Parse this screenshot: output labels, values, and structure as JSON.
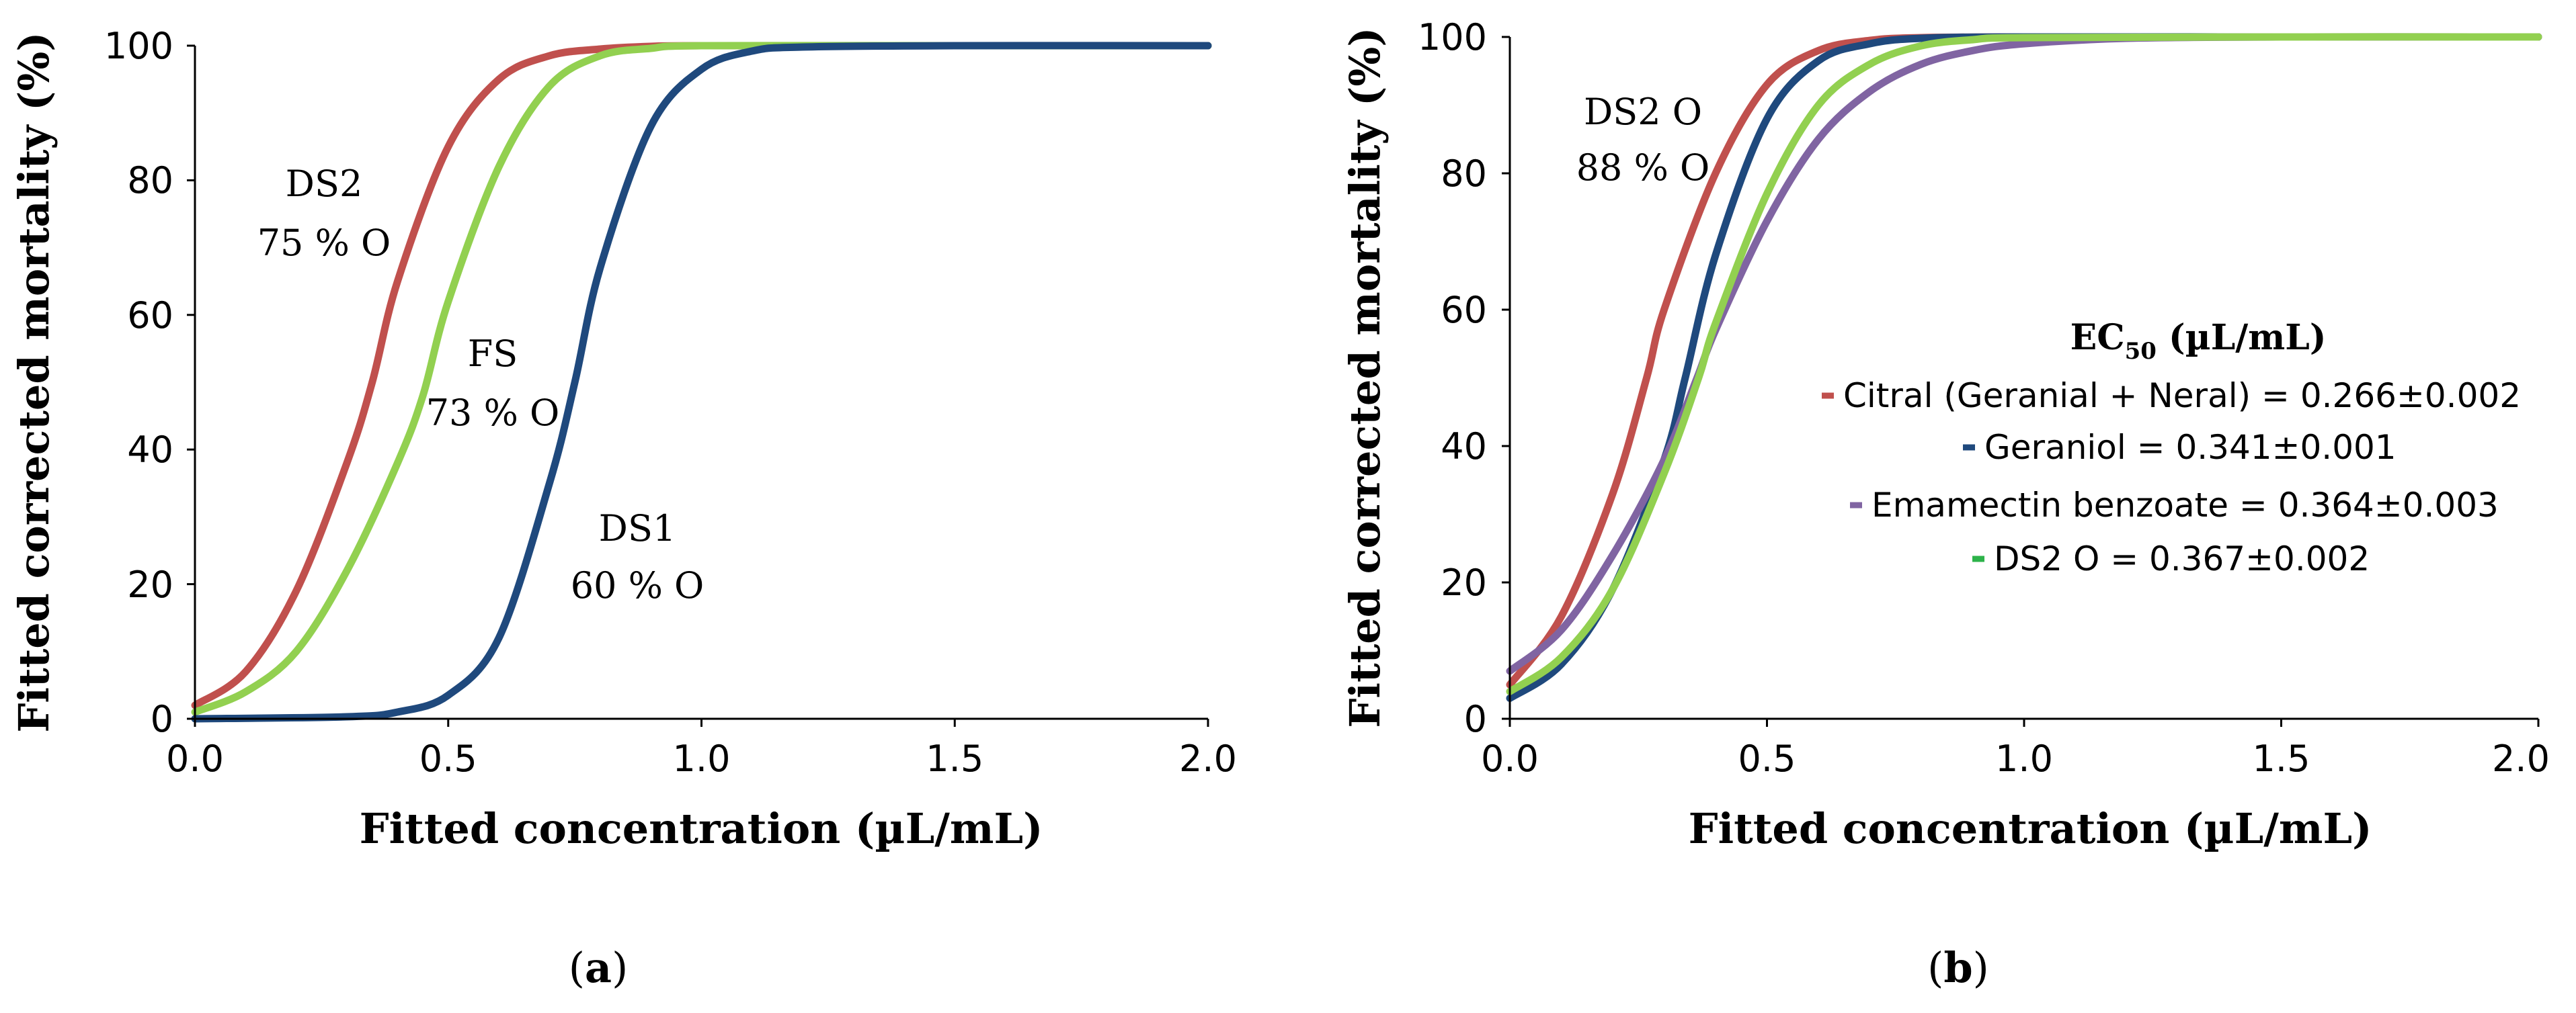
{
  "chart_data": [
    {
      "type": "line",
      "panel_label": [
        "(",
        "a",
        ")"
      ],
      "xlabel": "Fitted concentration (µL/mL)",
      "ylabel": "Fitted corrected mortality (%)",
      "xlim": [
        0,
        2
      ],
      "ylim": [
        0,
        100
      ],
      "xticks": [
        "0.0",
        "0.5",
        "1.0",
        "1.5",
        "2.0"
      ],
      "yticks": [
        "0",
        "20",
        "40",
        "60",
        "80",
        "100"
      ],
      "series": [
        {
          "name": "DS2",
          "color": "#c0504d",
          "x": [
            0,
            0.1,
            0.2,
            0.3,
            0.35,
            0.4,
            0.5,
            0.6,
            0.7,
            0.8,
            0.9,
            1.0,
            1.5,
            2.0
          ],
          "values": [
            2,
            7,
            19,
            38,
            50,
            65,
            85,
            95,
            98.5,
            99.5,
            99.9,
            100,
            100,
            100
          ]
        },
        {
          "name": "FS",
          "color": "#92d050",
          "x": [
            0,
            0.1,
            0.2,
            0.3,
            0.4,
            0.45,
            0.5,
            0.6,
            0.7,
            0.8,
            0.9,
            1.0,
            1.5,
            2.0
          ],
          "values": [
            1,
            4,
            10,
            22,
            38,
            48,
            62,
            82,
            94,
            98.5,
            99.6,
            100,
            100,
            100
          ]
        },
        {
          "name": "DS1",
          "color": "#1f497d",
          "x": [
            0,
            0.3,
            0.4,
            0.5,
            0.6,
            0.7,
            0.75,
            0.8,
            0.9,
            1.0,
            1.1,
            1.2,
            1.5,
            2.0
          ],
          "values": [
            0,
            0.3,
            1,
            3.5,
            12,
            35,
            50,
            67,
            88,
            96.5,
            99.2,
            99.8,
            100,
            100
          ]
        }
      ],
      "annotations": [
        {
          "lines": [
            "DS2",
            "75 % O"
          ]
        },
        {
          "lines": [
            "FS",
            "73 % O"
          ]
        },
        {
          "lines": [
            "DS1",
            "60 % O"
          ]
        }
      ]
    },
    {
      "type": "line",
      "panel_label": [
        "(",
        "b",
        ")"
      ],
      "xlabel": "Fitted concentration (µL/mL)",
      "ylabel": "Fitted corrected mortality (%)",
      "xlim": [
        0,
        2
      ],
      "ylim": [
        0,
        100
      ],
      "xticks": [
        "0.0",
        "0.5",
        "1.0",
        "1.5",
        "2.0"
      ],
      "yticks": [
        "0",
        "20",
        "40",
        "60",
        "80",
        "100"
      ],
      "legend_title": [
        "EC",
        "50",
        " (µL/mL)"
      ],
      "legend_position": "center-right",
      "series": [
        {
          "name": "Citral (Geranial + Neral) = 0.266±0.002",
          "color": "#c0504d",
          "x": [
            0,
            0.1,
            0.2,
            0.266,
            0.3,
            0.4,
            0.5,
            0.6,
            0.7,
            0.8,
            1.0,
            1.5,
            2.0
          ],
          "values": [
            5,
            15,
            33,
            50,
            60,
            80,
            93,
            98,
            99.5,
            99.9,
            100,
            100,
            100
          ]
        },
        {
          "name": "Geraniol = 0.341±0.001",
          "color": "#1f497d",
          "x": [
            0,
            0.1,
            0.2,
            0.3,
            0.341,
            0.4,
            0.5,
            0.6,
            0.7,
            0.8,
            1.0,
            1.5,
            2.0
          ],
          "values": [
            3,
            8,
            19,
            38,
            50,
            68,
            88,
            96.5,
            99,
            99.8,
            100,
            100,
            100
          ]
        },
        {
          "name": "Emamectin benzoate = 0.364±0.003",
          "color": "#8064a2",
          "x": [
            0,
            0.1,
            0.2,
            0.3,
            0.364,
            0.4,
            0.5,
            0.6,
            0.7,
            0.8,
            0.9,
            1.0,
            1.2,
            1.5,
            2.0
          ],
          "values": [
            7,
            13,
            24,
            38,
            50,
            57,
            73,
            85,
            92,
            96,
            98,
            99,
            99.8,
            100,
            100
          ]
        },
        {
          "name": "DS2 O = 0.367±0.002",
          "color": "#92d050",
          "x": [
            0,
            0.1,
            0.2,
            0.3,
            0.367,
            0.4,
            0.5,
            0.6,
            0.7,
            0.8,
            0.9,
            1.0,
            1.5,
            2.0
          ],
          "values": [
            4,
            9,
            19,
            36,
            50,
            58,
            77,
            90,
            96,
            98.7,
            99.6,
            99.9,
            100,
            100
          ]
        }
      ],
      "annotations": [
        {
          "lines": [
            "DS2 O",
            "88 % O"
          ]
        }
      ]
    }
  ]
}
